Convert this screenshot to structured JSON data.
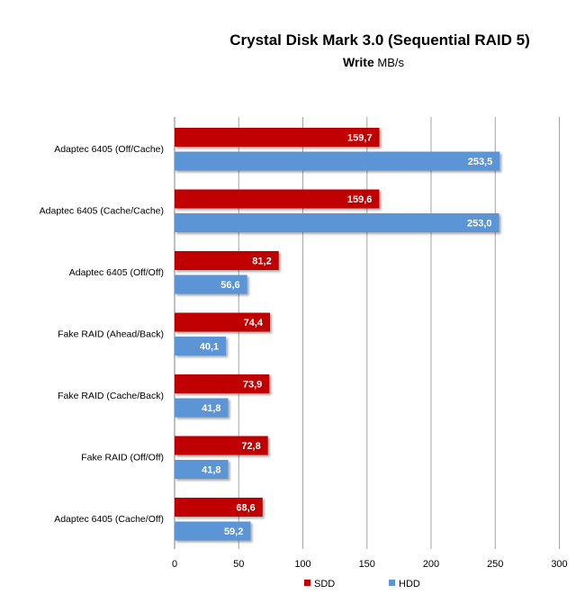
{
  "chart_data": {
    "type": "bar",
    "orientation": "horizontal",
    "title": "Crystal Disk Mark 3.0 (Sequential RAID 5)",
    "subtitle_bold": "Write",
    "subtitle_rest": " MB/s",
    "categories": [
      "Adaptec 6405 (Off/Cache)",
      "Adaptec 6405 (Cache/Cache)",
      "Adaptec 6405 (Off/Off)",
      "Fake RAID (Ahead/Back)",
      "Fake RAID (Cache/Back)",
      "Fake RAID (Off/Off)",
      "Adaptec 6405 (Cache/Off)"
    ],
    "series": [
      {
        "name": "SDD",
        "color": "#c00000",
        "values": [
          159.7,
          159.6,
          81.2,
          74.4,
          73.9,
          72.8,
          68.6
        ],
        "labels": [
          "159,7",
          "159,6",
          "81,2",
          "74,4",
          "73,9",
          "72,8",
          "68,6"
        ]
      },
      {
        "name": "HDD",
        "color": "#5b95d6",
        "values": [
          253.5,
          253.0,
          56.6,
          40.1,
          41.8,
          41.8,
          59.2
        ],
        "labels": [
          "253,5",
          "253,0",
          "56,6",
          "40,1",
          "41,8",
          "41,8",
          "59,2"
        ]
      }
    ],
    "xlim": [
      0,
      300
    ],
    "xticks": [
      0,
      50,
      100,
      150,
      200,
      250,
      300
    ],
    "grid": true,
    "legend": "bottom-right"
  }
}
